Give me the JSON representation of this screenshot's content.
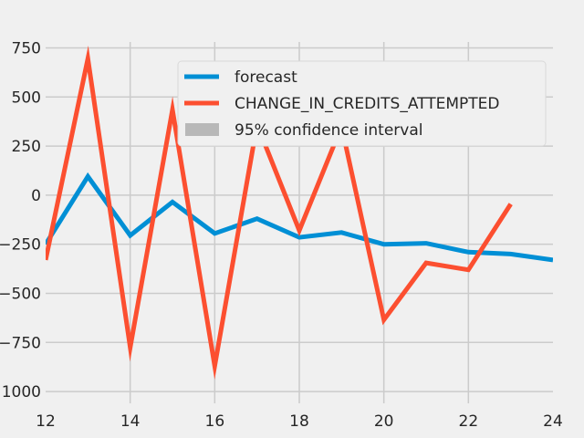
{
  "chart_data": {
    "type": "line",
    "title": "",
    "xlabel": "",
    "ylabel": "",
    "xlim": [
      12,
      24
    ],
    "ylim": [
      -1060,
      780
    ],
    "grid": true,
    "legend_position": "upper-right",
    "x_ticks": [
      12,
      14,
      16,
      18,
      20,
      22,
      24
    ],
    "y_ticks": [
      750,
      500,
      250,
      0,
      -250,
      -500,
      -750,
      -1000
    ],
    "x_tick_labels": [
      "12",
      "14",
      "16",
      "18",
      "20",
      "22",
      "24"
    ],
    "y_tick_labels": [
      "750",
      "500",
      "250",
      "0",
      "−250",
      "−500",
      "−750",
      "−1000"
    ],
    "series": [
      {
        "name": "forecast",
        "color": "#008fd5",
        "x": [
          12,
          13,
          14,
          15,
          16,
          17,
          18,
          19,
          20,
          21,
          22,
          23,
          24
        ],
        "y": [
          -250,
          95,
          -205,
          -35,
          -195,
          -120,
          -215,
          -190,
          -250,
          -245,
          -290,
          -300,
          -330
        ]
      },
      {
        "name": "CHANGE_IN_CREDITS_ATTEMPTED",
        "color": "#fc4f30",
        "x": [
          12,
          13,
          14,
          15,
          16,
          17,
          18,
          19,
          20,
          21,
          22,
          23
        ],
        "y": [
          -330,
          695,
          -775,
          435,
          -870,
          360,
          -180,
          350,
          -635,
          -345,
          -380,
          -45
        ]
      }
    ],
    "legend": [
      {
        "label": "forecast",
        "color": "#008fd5",
        "kind": "line"
      },
      {
        "label": "CHANGE_IN_CREDITS_ATTEMPTED",
        "color": "#fc4f30",
        "kind": "line"
      },
      {
        "label": "95% confidence interval",
        "color": "#b8b8b8",
        "kind": "patch"
      }
    ]
  }
}
